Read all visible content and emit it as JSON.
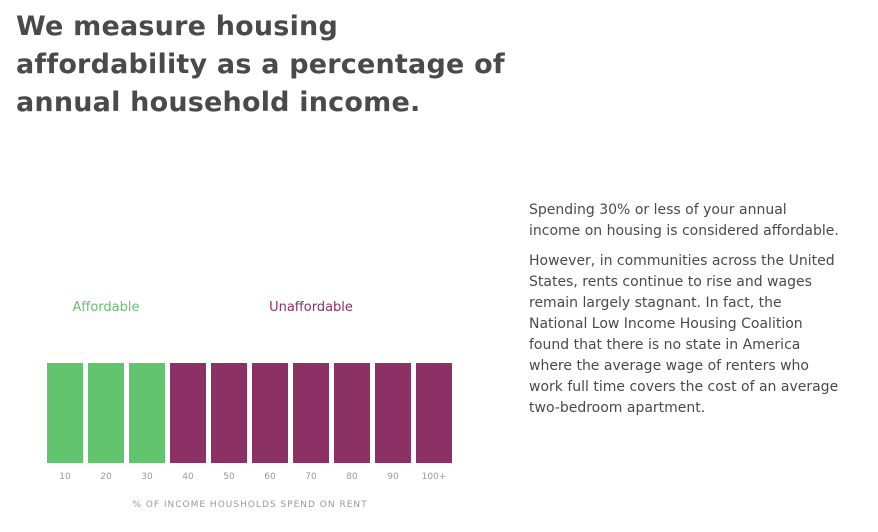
{
  "heading": "We measure housing affordability as a percentage of annual household income.",
  "paragraphs": [
    "Spending 30% or less of your annual income on housing is considered affordable.",
    "However, in communities across the United States, rents continue to rise and wages remain largely stagnant. In fact, the National Low Income Housing Coalition found that there is no state in America where the average wage of renters who work full time covers the cost of an average two-bedroom apartment."
  ],
  "colors": {
    "affordable": "#62c46e",
    "unaffordable": "#8b3163",
    "text": "#4a4a4a",
    "axis_text": "#9a9a9a"
  },
  "chart_data": {
    "type": "bar",
    "categories": [
      "10",
      "20",
      "30",
      "40",
      "50",
      "60",
      "70",
      "80",
      "90",
      "100+"
    ],
    "values": [
      1,
      1,
      1,
      1,
      1,
      1,
      1,
      1,
      1,
      1
    ],
    "groups": [
      "affordable",
      "affordable",
      "affordable",
      "unaffordable",
      "unaffordable",
      "unaffordable",
      "unaffordable",
      "unaffordable",
      "unaffordable",
      "unaffordable"
    ],
    "legend": [
      {
        "key": "affordable",
        "label": "Affordable"
      },
      {
        "key": "unaffordable",
        "label": "Unaffordable"
      }
    ],
    "title": "",
    "xlabel": "% OF INCOME HOUSHOLDS SPEND ON RENT",
    "ylabel": "",
    "grid": false
  }
}
